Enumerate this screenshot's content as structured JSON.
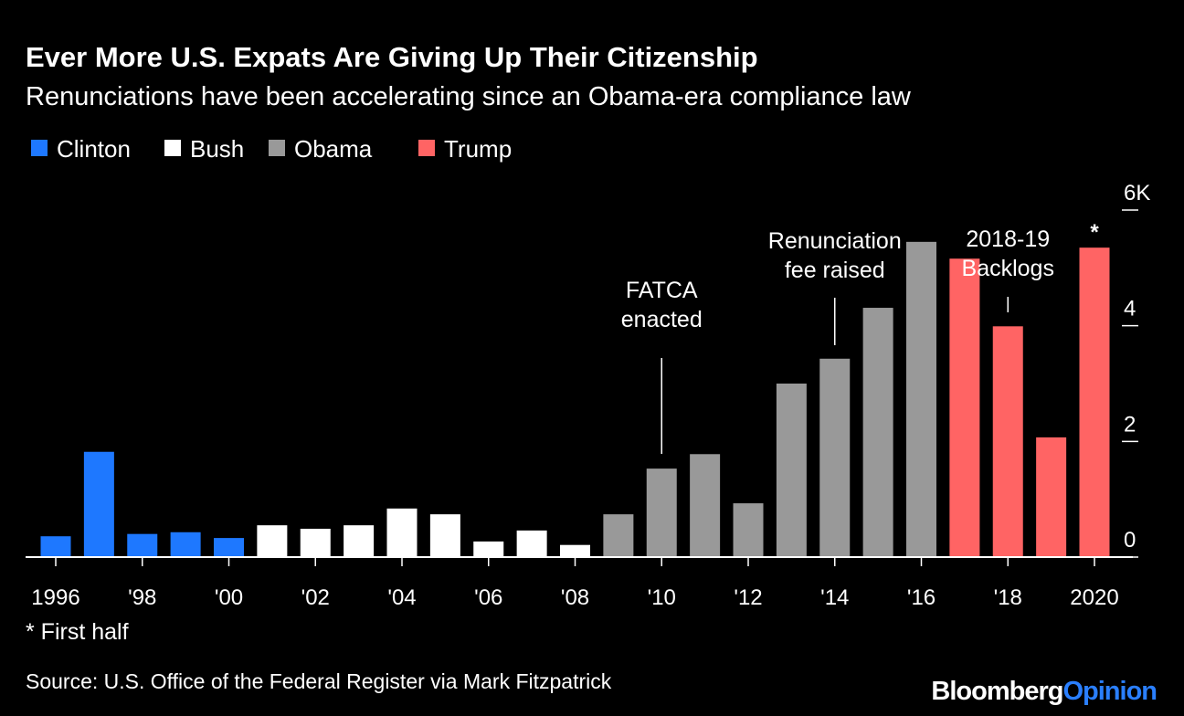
{
  "chart_data": {
    "type": "bar",
    "title": "Ever More U.S. Expats Are Giving Up Their Citizenship",
    "subtitle": "Renunciations have been accelerating since an Obama-era compliance law",
    "categories": [
      "1996",
      null,
      "'98",
      null,
      "'00",
      null,
      "'02",
      null,
      "'04",
      null,
      "'06",
      null,
      "'08",
      null,
      "'10",
      null,
      "'12",
      null,
      "'14",
      null,
      "'16",
      null,
      "'18",
      null,
      "2020"
    ],
    "series": [
      {
        "name": "Clinton",
        "color": "#1e78ff",
        "values": [
          0.36,
          1.82,
          0.4,
          0.43,
          0.33,
          null,
          null,
          null,
          null,
          null,
          null,
          null,
          null,
          null,
          null,
          null,
          null,
          null,
          null,
          null,
          null,
          null,
          null,
          null,
          null
        ]
      },
      {
        "name": "Bush",
        "color": "#ffffff",
        "values": [
          null,
          null,
          null,
          null,
          null,
          0.55,
          0.49,
          0.55,
          0.84,
          0.74,
          0.27,
          0.46,
          0.21,
          null,
          null,
          null,
          null,
          null,
          null,
          null,
          null,
          null,
          null,
          null,
          null
        ]
      },
      {
        "name": "Obama",
        "color": "#999999",
        "values": [
          null,
          null,
          null,
          null,
          null,
          null,
          null,
          null,
          null,
          null,
          null,
          null,
          null,
          0.74,
          1.53,
          1.78,
          0.93,
          3.0,
          3.43,
          4.31,
          5.45,
          null,
          null,
          null,
          null
        ]
      },
      {
        "name": "Trump",
        "color": "#ff6464",
        "values": [
          null,
          null,
          null,
          null,
          null,
          null,
          null,
          null,
          null,
          null,
          null,
          null,
          null,
          null,
          null,
          null,
          null,
          null,
          null,
          null,
          null,
          5.16,
          3.99,
          2.07,
          5.35
        ]
      }
    ],
    "ylim": [
      0,
      6
    ],
    "yticks": [
      0,
      2,
      4,
      {
        "value": 6,
        "label": "6K"
      }
    ],
    "annotations": [
      {
        "lines": [
          "FATCA",
          "enacted"
        ]
      },
      {
        "lines": [
          "Renunciation",
          "fee raised"
        ]
      },
      {
        "lines": [
          "2018-19",
          "Backlogs"
        ]
      },
      {
        "lines": [
          "*"
        ]
      }
    ],
    "footnote": "* First half",
    "source": "Source: U.S. Office of the Federal Register via Mark Fitzpatrick",
    "brand": [
      "Bloomberg",
      "Opinion"
    ]
  }
}
